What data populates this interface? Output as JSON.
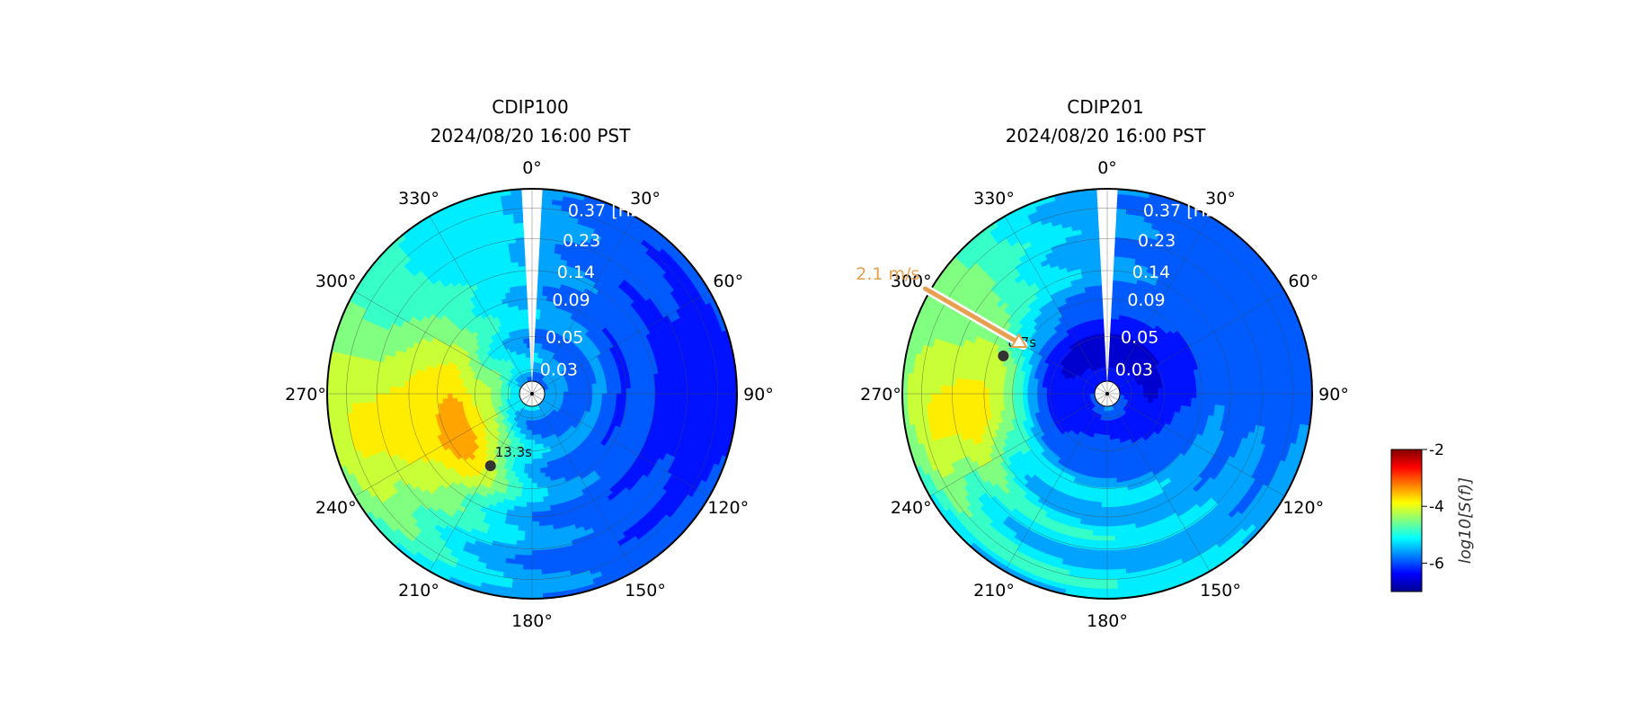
{
  "chart_data": [
    {
      "type": "heatmap",
      "projection": "polar",
      "title": "CDIP100",
      "subtitle": "2024/08/20 16:00 PST",
      "angle_ticks": [
        "0°",
        "30°",
        "60°",
        "90°",
        "120°",
        "150°",
        "180°",
        "210°",
        "240°",
        "270°",
        "300°",
        "330°"
      ],
      "radial_ticks": [
        "0.03",
        "0.05",
        "0.09",
        "0.14",
        "0.23",
        "0.37 [Hz]"
      ],
      "radial_scale": "log",
      "direction_convention": "clockwise from north",
      "value_range": [
        -7,
        -2
      ],
      "background_level": -5.7,
      "features": [
        {
          "direction_deg": 255,
          "frequency_hz": 0.075,
          "level": -2.2,
          "angular_width_deg": 22,
          "radial_width": 0.05
        },
        {
          "direction_deg": 240,
          "frequency_hz": 0.08,
          "level": -3.0,
          "angular_width_deg": 60,
          "radial_width": 0.14
        },
        {
          "direction_deg": 285,
          "frequency_hz": 0.2,
          "level": -2.6,
          "angular_width_deg": 32,
          "radial_width": 0.22
        },
        {
          "direction_deg": 270,
          "frequency_hz": 0.2,
          "level": -3.6,
          "angular_width_deg": 90,
          "radial_width": 0.45
        },
        {
          "direction_deg": 300,
          "frequency_hz": 0.3,
          "level": -4.3,
          "angular_width_deg": 40,
          "radial_width": 0.2
        },
        {
          "direction_deg": 330,
          "frequency_hz": 0.3,
          "level": -5.0,
          "angular_width_deg": 60,
          "radial_width": 0.3
        },
        {
          "direction_deg": 90,
          "frequency_hz": 0.3,
          "level": -6.2,
          "angular_width_deg": 120,
          "radial_width": 0.4
        }
      ],
      "peak": {
        "label": "13.3s",
        "direction_deg": 210,
        "frequency_hz": 0.075
      },
      "wind": null
    },
    {
      "type": "heatmap",
      "projection": "polar",
      "title": "CDIP201",
      "subtitle": "2024/08/20 16:00 PST",
      "angle_ticks": [
        "0°",
        "30°",
        "60°",
        "90°",
        "120°",
        "150°",
        "180°",
        "210°",
        "240°",
        "270°",
        "300°",
        "330°"
      ],
      "radial_ticks": [
        "0.03",
        "0.05",
        "0.09",
        "0.14",
        "0.23",
        "0.37 [Hz]"
      ],
      "radial_scale": "log",
      "direction_convention": "clockwise from north",
      "value_range": [
        -7,
        -2
      ],
      "background_level": -5.2,
      "features": [
        {
          "direction_deg": 285,
          "frequency_hz": 0.14,
          "level": -2.5,
          "angular_width_deg": 15,
          "radial_width": 0.12
        },
        {
          "direction_deg": 270,
          "frequency_hz": 0.18,
          "level": -3.3,
          "angular_width_deg": 45,
          "radial_width": 0.3
        },
        {
          "direction_deg": 300,
          "frequency_hz": 0.3,
          "level": -4.2,
          "angular_width_deg": 50,
          "radial_width": 0.3
        },
        {
          "direction_deg": 60,
          "frequency_hz": 0.3,
          "level": -6.0,
          "angular_width_deg": 120,
          "radial_width": 0.5
        },
        {
          "direction_deg": 0,
          "frequency_hz": 0.04,
          "level": -6.6,
          "angular_width_deg": 360,
          "radial_width": 0.18
        }
      ],
      "peak": {
        "label": "8.7s",
        "direction_deg": 290,
        "frequency_hz": 0.115
      },
      "wind": {
        "label": "2.1 m/s",
        "direction_deg": 300,
        "color": "#e8a050"
      }
    }
  ],
  "colorbar": {
    "label": "log10[S(f)]",
    "ticks": [
      "-2",
      "-4",
      "-6"
    ],
    "range": [
      -7,
      -2
    ],
    "colormap": "jet"
  },
  "colors": {
    "wind_arrow": "#e8a050",
    "grid": "#444444",
    "radial_label": "#ffffff"
  }
}
